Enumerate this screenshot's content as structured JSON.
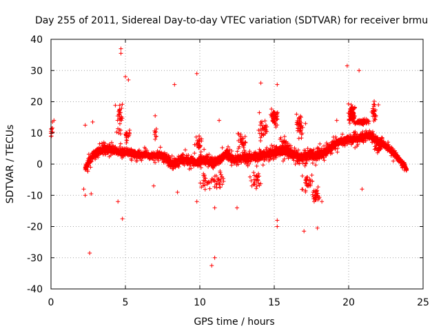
{
  "chart_data": {
    "type": "scatter",
    "title": "Day 255 of 2011, Sidereal Day-to-day VTEC variation (SDTVAR) for receiver brmu",
    "xlabel": "GPS time / hours",
    "ylabel": "SDTVAR / TECUs",
    "xlim": [
      0,
      25
    ],
    "ylim": [
      -40,
      40
    ],
    "xticks": [
      "0",
      "5",
      "10",
      "15",
      "20",
      "25"
    ],
    "yticks": [
      "-40",
      "-30",
      "-20",
      "-10",
      "0",
      "10",
      "20",
      "30",
      "40"
    ],
    "grid": true,
    "marker": "+",
    "colors": {
      "points": "#ff0000",
      "grid": "#a0a0a0",
      "axis": "#000000"
    },
    "series": [
      {
        "name": "SDTVAR",
        "band": [
          [
            2.3,
            -1.5,
            2.2
          ],
          [
            2.7,
            2.0,
            2.5
          ],
          [
            3.2,
            4.2,
            2.5
          ],
          [
            3.8,
            4.8,
            2.5
          ],
          [
            4.5,
            4.0,
            2.5
          ],
          [
            5.0,
            3.8,
            2.5
          ],
          [
            5.5,
            3.2,
            2.5
          ],
          [
            6.2,
            3.0,
            2.2
          ],
          [
            6.8,
            2.5,
            2.2
          ],
          [
            7.3,
            3.0,
            2.2
          ],
          [
            7.8,
            2.0,
            3.0
          ],
          [
            8.2,
            -0.5,
            3.0
          ],
          [
            8.7,
            1.5,
            3.0
          ],
          [
            9.3,
            1.2,
            3.0
          ],
          [
            9.8,
            0.5,
            3.0
          ],
          [
            10.3,
            1.5,
            3.0
          ],
          [
            10.8,
            0.5,
            3.0
          ],
          [
            11.3,
            1.0,
            3.0
          ],
          [
            11.8,
            3.5,
            3.0
          ],
          [
            12.2,
            1.5,
            3.0
          ],
          [
            12.8,
            2.0,
            3.0
          ],
          [
            13.3,
            2.0,
            3.0
          ],
          [
            13.8,
            2.5,
            3.0
          ],
          [
            14.3,
            3.0,
            3.2
          ],
          [
            14.8,
            3.5,
            3.5
          ],
          [
            15.3,
            4.0,
            3.5
          ],
          [
            15.8,
            4.5,
            3.5
          ],
          [
            16.3,
            3.0,
            3.2
          ],
          [
            16.8,
            2.0,
            3.2
          ],
          [
            17.3,
            3.0,
            3.2
          ],
          [
            17.8,
            2.5,
            3.0
          ],
          [
            18.3,
            3.5,
            3.0
          ],
          [
            18.8,
            5.0,
            3.0
          ],
          [
            19.3,
            7.0,
            2.5
          ],
          [
            19.8,
            7.8,
            2.5
          ],
          [
            20.3,
            8.0,
            2.5
          ],
          [
            20.8,
            8.5,
            2.5
          ],
          [
            21.3,
            9.5,
            2.5
          ],
          [
            21.8,
            8.0,
            2.5
          ],
          [
            22.3,
            6.5,
            2.2
          ],
          [
            22.8,
            4.5,
            2.0
          ],
          [
            23.3,
            2.0,
            2.0
          ],
          [
            23.7,
            0.0,
            1.8
          ],
          [
            23.9,
            -1.8,
            1.2
          ]
        ],
        "clusters": [
          [
            0.0,
            10.0,
            0.2,
            3.0,
            25
          ],
          [
            4.6,
            15.0,
            0.3,
            8.0,
            30
          ],
          [
            5.1,
            9.5,
            0.3,
            4.0,
            20
          ],
          [
            7.0,
            10.0,
            0.1,
            3.0,
            8
          ],
          [
            9.9,
            7.0,
            0.3,
            5.0,
            25
          ],
          [
            10.5,
            -6.0,
            0.6,
            4.0,
            25
          ],
          [
            11.3,
            -5.0,
            0.5,
            4.0,
            25
          ],
          [
            12.8,
            7.0,
            0.5,
            4.0,
            25
          ],
          [
            13.8,
            -5.0,
            0.5,
            4.0,
            25
          ],
          [
            14.3,
            11.0,
            0.4,
            5.0,
            30
          ],
          [
            15.0,
            15.0,
            0.3,
            4.0,
            60
          ],
          [
            15.6,
            6.0,
            0.4,
            5.0,
            30
          ],
          [
            16.7,
            12.0,
            0.3,
            5.0,
            35
          ],
          [
            17.2,
            -6.0,
            0.5,
            4.0,
            30
          ],
          [
            17.8,
            -10.0,
            0.3,
            3.5,
            30
          ],
          [
            20.2,
            16.0,
            0.3,
            3.5,
            90
          ],
          [
            20.9,
            13.5,
            0.6,
            1.2,
            90
          ],
          [
            21.7,
            17.0,
            0.2,
            4.0,
            25
          ],
          [
            22.0,
            5.0,
            0.4,
            2.5,
            30
          ]
        ],
        "outliers": [
          [
            4.7,
            37.0
          ],
          [
            4.7,
            35.5
          ],
          [
            5.0,
            28.0
          ],
          [
            5.2,
            27.0
          ],
          [
            8.3,
            25.5
          ],
          [
            9.8,
            29.0
          ],
          [
            14.1,
            26.0
          ],
          [
            15.2,
            25.5
          ],
          [
            19.9,
            31.5
          ],
          [
            20.7,
            30.0
          ],
          [
            2.6,
            -28.5
          ],
          [
            4.8,
            -17.5
          ],
          [
            10.8,
            -32.5
          ],
          [
            11.0,
            -30.0
          ],
          [
            11.0,
            -14.0
          ],
          [
            12.5,
            -14.0
          ],
          [
            15.2,
            -18.0
          ],
          [
            15.2,
            -20.0
          ],
          [
            17.0,
            -21.5
          ],
          [
            17.9,
            -20.5
          ],
          [
            20.9,
            -8.0
          ],
          [
            2.2,
            -8.0
          ],
          [
            2.3,
            -10.0
          ],
          [
            2.7,
            -9.5
          ],
          [
            8.5,
            -9.0
          ],
          [
            9.8,
            -12.0
          ],
          [
            4.5,
            -12.0
          ],
          [
            23.0,
            1.0
          ],
          [
            0.2,
            14.0
          ],
          [
            0.1,
            13.5
          ],
          [
            2.3,
            12.5
          ],
          [
            2.8,
            13.5
          ],
          [
            7.0,
            15.5
          ],
          [
            11.3,
            14.0
          ],
          [
            14.0,
            16.5
          ],
          [
            16.5,
            16.0
          ],
          [
            16.8,
            15.0
          ],
          [
            17.1,
            13.0
          ],
          [
            22.0,
            19.0
          ],
          [
            19.2,
            14.0
          ],
          [
            18.0,
            -11.0
          ],
          [
            18.2,
            -12.0
          ],
          [
            6.9,
            -7.0
          ],
          [
            11.5,
            -6.5
          ],
          [
            13.5,
            -7.0
          ]
        ]
      }
    ]
  }
}
